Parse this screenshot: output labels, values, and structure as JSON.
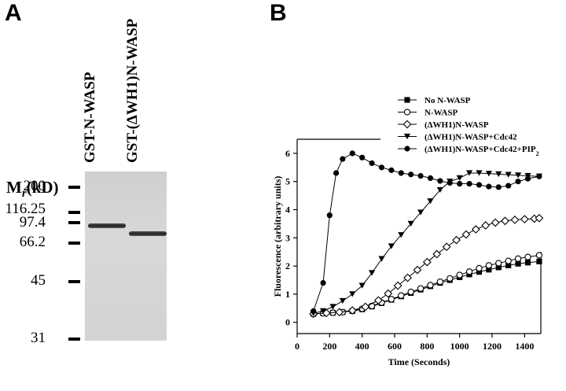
{
  "panelA": {
    "letter": "A",
    "lane_labels": [
      "GST-N-WASP",
      "GST-(ΔWH1)N-WASP"
    ],
    "mr_label": {
      "main": "M",
      "sub": "r",
      "unit": "(kD)"
    },
    "markers": [
      "200",
      "116.25",
      "97.4",
      "66.2",
      "45",
      "31"
    ]
  },
  "panelB": {
    "letter": "B",
    "legend_position": "top-right",
    "chart_data": {
      "type": "scatter",
      "xlabel": "Time (Seconds)",
      "ylabel": "Fluorescence (arbitrary units)",
      "xlim": [
        0,
        1500
      ],
      "ylim": [
        -0.4,
        6.5
      ],
      "xticks": [
        0,
        200,
        400,
        600,
        800,
        1000,
        1200,
        1400
      ],
      "yticks": [
        0,
        1,
        2,
        3,
        4,
        5,
        6
      ],
      "grid": false,
      "series": [
        {
          "name": "No N-WASP",
          "marker": "square-filled",
          "points": [
            [
              100,
              0.3
            ],
            [
              160,
              0.32
            ],
            [
              220,
              0.34
            ],
            [
              280,
              0.36
            ],
            [
              340,
              0.4
            ],
            [
              400,
              0.46
            ],
            [
              460,
              0.56
            ],
            [
              520,
              0.68
            ],
            [
              580,
              0.8
            ],
            [
              640,
              0.92
            ],
            [
              700,
              1.04
            ],
            [
              760,
              1.16
            ],
            [
              820,
              1.28
            ],
            [
              880,
              1.4
            ],
            [
              940,
              1.5
            ],
            [
              1000,
              1.6
            ],
            [
              1060,
              1.7
            ],
            [
              1120,
              1.79
            ],
            [
              1180,
              1.87
            ],
            [
              1240,
              1.95
            ],
            [
              1300,
              2.02
            ],
            [
              1360,
              2.08
            ],
            [
              1420,
              2.12
            ],
            [
              1490,
              2.16
            ]
          ]
        },
        {
          "name": "N-WASP",
          "marker": "circle-open",
          "points": [
            [
              100,
              0.3
            ],
            [
              160,
              0.32
            ],
            [
              220,
              0.34
            ],
            [
              280,
              0.36
            ],
            [
              340,
              0.41
            ],
            [
              400,
              0.48
            ],
            [
              460,
              0.58
            ],
            [
              520,
              0.7
            ],
            [
              580,
              0.82
            ],
            [
              640,
              0.95
            ],
            [
              700,
              1.08
            ],
            [
              760,
              1.2
            ],
            [
              820,
              1.32
            ],
            [
              880,
              1.44
            ],
            [
              940,
              1.56
            ],
            [
              1000,
              1.68
            ],
            [
              1060,
              1.8
            ],
            [
              1120,
              1.92
            ],
            [
              1180,
              2.02
            ],
            [
              1240,
              2.1
            ],
            [
              1300,
              2.18
            ],
            [
              1360,
              2.26
            ],
            [
              1420,
              2.32
            ],
            [
              1490,
              2.38
            ]
          ]
        },
        {
          "name": "(ΔWH1)N-WASP",
          "marker": "diamond-open",
          "points": [
            [
              100,
              0.3
            ],
            [
              180,
              0.33
            ],
            [
              260,
              0.36
            ],
            [
              340,
              0.42
            ],
            [
              420,
              0.55
            ],
            [
              500,
              0.78
            ],
            [
              560,
              1.02
            ],
            [
              620,
              1.3
            ],
            [
              680,
              1.58
            ],
            [
              740,
              1.86
            ],
            [
              800,
              2.14
            ],
            [
              860,
              2.42
            ],
            [
              920,
              2.68
            ],
            [
              980,
              2.92
            ],
            [
              1040,
              3.12
            ],
            [
              1100,
              3.3
            ],
            [
              1160,
              3.44
            ],
            [
              1220,
              3.54
            ],
            [
              1280,
              3.6
            ],
            [
              1340,
              3.64
            ],
            [
              1400,
              3.66
            ],
            [
              1460,
              3.68
            ],
            [
              1490,
              3.7
            ]
          ]
        },
        {
          "name": "(ΔWH1)N-WASP+Cdc42",
          "marker": "triangle-down-filled",
          "points": [
            [
              100,
              0.32
            ],
            [
              160,
              0.4
            ],
            [
              220,
              0.55
            ],
            [
              280,
              0.76
            ],
            [
              340,
              1.0
            ],
            [
              400,
              1.3
            ],
            [
              460,
              1.75
            ],
            [
              520,
              2.25
            ],
            [
              580,
              2.7
            ],
            [
              640,
              3.1
            ],
            [
              700,
              3.5
            ],
            [
              760,
              3.9
            ],
            [
              820,
              4.3
            ],
            [
              880,
              4.7
            ],
            [
              940,
              5.0
            ],
            [
              1000,
              5.12
            ],
            [
              1060,
              5.3
            ],
            [
              1120,
              5.3
            ],
            [
              1180,
              5.28
            ],
            [
              1240,
              5.26
            ],
            [
              1300,
              5.24
            ],
            [
              1360,
              5.22
            ],
            [
              1420,
              5.2
            ],
            [
              1490,
              5.18
            ]
          ]
        },
        {
          "name": "(ΔWH1)N-WASP+Cdc42+PIP",
          "name_sub": "2",
          "marker": "circle-filled",
          "points": [
            [
              100,
              0.4
            ],
            [
              160,
              1.4
            ],
            [
              200,
              3.8
            ],
            [
              240,
              5.3
            ],
            [
              280,
              5.8
            ],
            [
              340,
              6.0
            ],
            [
              400,
              5.85
            ],
            [
              460,
              5.65
            ],
            [
              520,
              5.5
            ],
            [
              580,
              5.4
            ],
            [
              640,
              5.3
            ],
            [
              700,
              5.25
            ],
            [
              760,
              5.2
            ],
            [
              820,
              5.12
            ],
            [
              880,
              5.02
            ],
            [
              940,
              4.95
            ],
            [
              1000,
              4.92
            ],
            [
              1060,
              4.92
            ],
            [
              1120,
              4.88
            ],
            [
              1180,
              4.82
            ],
            [
              1240,
              4.8
            ],
            [
              1300,
              4.85
            ],
            [
              1360,
              5.0
            ],
            [
              1420,
              5.1
            ],
            [
              1490,
              5.18
            ]
          ]
        }
      ]
    }
  }
}
